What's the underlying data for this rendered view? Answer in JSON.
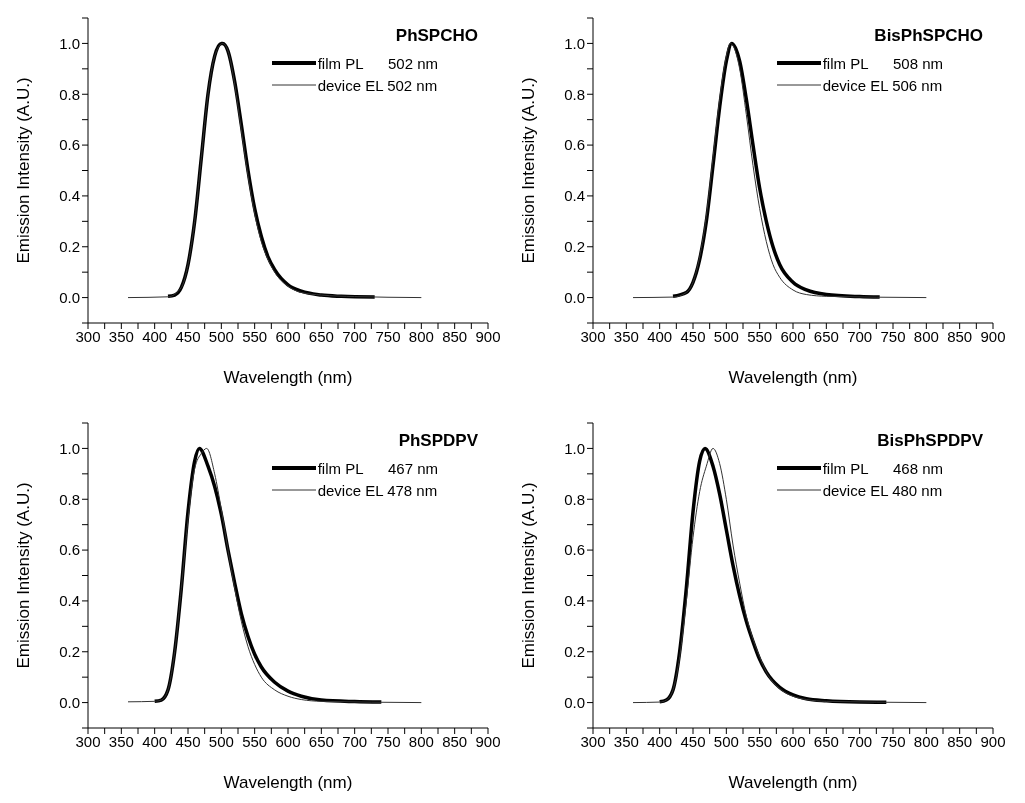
{
  "chart_data": [
    {
      "type": "line",
      "title": "PhSPCHO",
      "xlabel": "Wavelength (nm)",
      "ylabel": "Emission Intensity (A.U.)",
      "xlim": [
        300,
        900
      ],
      "ylim": [
        -0.1,
        1.1
      ],
      "xticks": [
        300,
        {
          "value": 325,
          "label": null
        },
        350,
        {
          "value": 375,
          "label": null
        },
        400,
        {
          "value": 425,
          "label": null
        },
        450,
        {
          "value": 475,
          "label": null
        },
        500,
        {
          "value": 525,
          "label": null
        },
        550,
        {
          "value": 575,
          "label": null
        },
        600,
        {
          "value": 625,
          "label": null
        },
        650,
        {
          "value": 675,
          "label": null
        },
        700,
        {
          "value": 725,
          "label": null
        },
        750,
        {
          "value": 775,
          "label": null
        },
        800,
        {
          "value": 825,
          "label": null
        },
        850,
        {
          "value": 875,
          "label": null
        },
        900
      ],
      "yticks": [
        {
          "value": -0.1,
          "label": null
        },
        {
          "value": 0,
          "label": "0.0"
        },
        {
          "value": 0.1,
          "label": null
        },
        0.2,
        {
          "value": 0.3,
          "label": null
        },
        0.4,
        {
          "value": 0.5,
          "label": null
        },
        0.6,
        {
          "value": 0.7,
          "label": null
        },
        0.8,
        {
          "value": 0.9,
          "label": null
        },
        {
          "value": 1,
          "label": "1.0"
        },
        {
          "value": 1.1,
          "label": null
        }
      ],
      "legend": "top right",
      "marker": "none",
      "line_style": "solid",
      "grid": false,
      "series": [
        {
          "name": "film PL      502 nm",
          "color": "#000000",
          "x": [
            420,
            430,
            440,
            450,
            460,
            470,
            480,
            490,
            500,
            502,
            510,
            520,
            530,
            540,
            550,
            560,
            570,
            580,
            600,
            620,
            650,
            680,
            730
          ],
          "values": [
            0.005,
            0.01,
            0.04,
            0.13,
            0.3,
            0.55,
            0.8,
            0.95,
            1.0,
            1.0,
            0.97,
            0.85,
            0.68,
            0.5,
            0.35,
            0.24,
            0.16,
            0.11,
            0.05,
            0.025,
            0.01,
            0.005,
            0.002
          ]
        },
        {
          "name": "device EL 502 nm",
          "color": "#333333",
          "x": [
            360,
            420,
            440,
            450,
            460,
            470,
            480,
            490,
            502,
            510,
            520,
            530,
            540,
            550,
            560,
            570,
            580,
            600,
            620,
            650,
            700,
            800
          ],
          "values": [
            0,
            0.003,
            0.04,
            0.13,
            0.3,
            0.55,
            0.8,
            0.95,
            1.0,
            0.97,
            0.84,
            0.66,
            0.48,
            0.33,
            0.22,
            0.15,
            0.1,
            0.045,
            0.02,
            0.01,
            0.004,
            0
          ]
        }
      ]
    },
    {
      "type": "line",
      "title": "BisPhSPCHO",
      "xlabel": "Wavelength (nm)",
      "ylabel": "Emission Intensity (A.U.)",
      "xlim": [
        300,
        900
      ],
      "ylim": [
        -0.1,
        1.1
      ],
      "xticks": [
        300,
        {
          "value": 325,
          "label": null
        },
        350,
        {
          "value": 375,
          "label": null
        },
        400,
        {
          "value": 425,
          "label": null
        },
        450,
        {
          "value": 475,
          "label": null
        },
        500,
        {
          "value": 525,
          "label": null
        },
        550,
        {
          "value": 575,
          "label": null
        },
        600,
        {
          "value": 625,
          "label": null
        },
        650,
        {
          "value": 675,
          "label": null
        },
        700,
        {
          "value": 725,
          "label": null
        },
        750,
        {
          "value": 775,
          "label": null
        },
        800,
        {
          "value": 825,
          "label": null
        },
        850,
        {
          "value": 875,
          "label": null
        },
        900
      ],
      "yticks": [
        {
          "value": -0.1,
          "label": null
        },
        {
          "value": 0,
          "label": "0.0"
        },
        {
          "value": 0.1,
          "label": null
        },
        0.2,
        {
          "value": 0.3,
          "label": null
        },
        0.4,
        {
          "value": 0.5,
          "label": null
        },
        0.6,
        {
          "value": 0.7,
          "label": null
        },
        0.8,
        {
          "value": 0.9,
          "label": null
        },
        {
          "value": 1,
          "label": "1.0"
        },
        {
          "value": 1.1,
          "label": null
        }
      ],
      "legend": "top right",
      "marker": "none",
      "line_style": "solid",
      "grid": false,
      "series": [
        {
          "name": "film PL      508 nm",
          "color": "#000000",
          "x": [
            420,
            440,
            450,
            460,
            470,
            480,
            490,
            500,
            508,
            520,
            530,
            540,
            550,
            560,
            570,
            580,
            600,
            620,
            650,
            700,
            730
          ],
          "values": [
            0.005,
            0.02,
            0.06,
            0.15,
            0.3,
            0.52,
            0.75,
            0.93,
            1.0,
            0.93,
            0.78,
            0.6,
            0.43,
            0.3,
            0.2,
            0.13,
            0.06,
            0.03,
            0.012,
            0.004,
            0.002
          ]
        },
        {
          "name": "device EL 506 nm",
          "color": "#333333",
          "x": [
            360,
            420,
            440,
            450,
            460,
            470,
            480,
            490,
            500,
            506,
            520,
            530,
            540,
            550,
            560,
            570,
            580,
            600,
            620,
            650,
            800
          ],
          "values": [
            0,
            0.002,
            0.02,
            0.06,
            0.16,
            0.32,
            0.55,
            0.78,
            0.95,
            1.0,
            0.9,
            0.72,
            0.52,
            0.35,
            0.22,
            0.13,
            0.08,
            0.03,
            0.012,
            0.005,
            0
          ]
        }
      ]
    },
    {
      "type": "line",
      "title": "PhSPDPV",
      "xlabel": "Wavelength (nm)",
      "ylabel": "Emission Intensity (A.U.)",
      "xlim": [
        300,
        900
      ],
      "ylim": [
        -0.1,
        1.1
      ],
      "xticks": [
        300,
        {
          "value": 325,
          "label": null
        },
        350,
        {
          "value": 375,
          "label": null
        },
        400,
        {
          "value": 425,
          "label": null
        },
        450,
        {
          "value": 475,
          "label": null
        },
        500,
        {
          "value": 525,
          "label": null
        },
        550,
        {
          "value": 575,
          "label": null
        },
        600,
        {
          "value": 625,
          "label": null
        },
        650,
        {
          "value": 675,
          "label": null
        },
        700,
        {
          "value": 725,
          "label": null
        },
        750,
        {
          "value": 775,
          "label": null
        },
        800,
        {
          "value": 825,
          "label": null
        },
        850,
        {
          "value": 875,
          "label": null
        },
        900
      ],
      "yticks": [
        {
          "value": -0.1,
          "label": null
        },
        {
          "value": 0,
          "label": "0.0"
        },
        {
          "value": 0.1,
          "label": null
        },
        0.2,
        {
          "value": 0.3,
          "label": null
        },
        0.4,
        {
          "value": 0.5,
          "label": null
        },
        0.6,
        {
          "value": 0.7,
          "label": null
        },
        0.8,
        {
          "value": 0.9,
          "label": null
        },
        {
          "value": 1,
          "label": "1.0"
        },
        {
          "value": 1.1,
          "label": null
        }
      ],
      "legend": "top right",
      "marker": "none",
      "line_style": "solid",
      "grid": false,
      "series": [
        {
          "name": "film PL      467 nm",
          "color": "#000000",
          "x": [
            400,
            410,
            420,
            430,
            440,
            450,
            460,
            467,
            480,
            490,
            500,
            510,
            520,
            530,
            540,
            550,
            560,
            580,
            600,
            620,
            650,
            700,
            740
          ],
          "values": [
            0.005,
            0.01,
            0.05,
            0.2,
            0.45,
            0.75,
            0.95,
            1.0,
            0.93,
            0.85,
            0.74,
            0.6,
            0.47,
            0.35,
            0.26,
            0.19,
            0.14,
            0.08,
            0.045,
            0.025,
            0.01,
            0.004,
            0.002
          ]
        },
        {
          "name": "device EL 478 nm",
          "color": "#333333",
          "x": [
            360,
            400,
            410,
            420,
            430,
            440,
            450,
            460,
            470,
            478,
            490,
            500,
            510,
            520,
            530,
            540,
            550,
            560,
            580,
            600,
            620,
            650,
            800
          ],
          "values": [
            0.003,
            0.005,
            0.01,
            0.05,
            0.2,
            0.45,
            0.72,
            0.92,
            0.98,
            1.0,
            0.9,
            0.76,
            0.6,
            0.45,
            0.32,
            0.22,
            0.15,
            0.1,
            0.05,
            0.025,
            0.012,
            0.005,
            0
          ]
        }
      ]
    },
    {
      "type": "line",
      "title": "BisPhSPDPV",
      "xlabel": "Wavelength (nm)",
      "ylabel": "Emission Intensity (A.U.)",
      "xlim": [
        300,
        900
      ],
      "ylim": [
        -0.1,
        1.1
      ],
      "xticks": [
        300,
        {
          "value": 325,
          "label": null
        },
        350,
        {
          "value": 375,
          "label": null
        },
        400,
        {
          "value": 425,
          "label": null
        },
        450,
        {
          "value": 475,
          "label": null
        },
        500,
        {
          "value": 525,
          "label": null
        },
        550,
        {
          "value": 575,
          "label": null
        },
        600,
        {
          "value": 625,
          "label": null
        },
        650,
        {
          "value": 675,
          "label": null
        },
        700,
        {
          "value": 725,
          "label": null
        },
        750,
        {
          "value": 775,
          "label": null
        },
        800,
        {
          "value": 825,
          "label": null
        },
        850,
        {
          "value": 875,
          "label": null
        },
        900
      ],
      "yticks": [
        {
          "value": -0.1,
          "label": null
        },
        {
          "value": 0,
          "label": "0.0"
        },
        {
          "value": 0.1,
          "label": null
        },
        0.2,
        {
          "value": 0.3,
          "label": null
        },
        0.4,
        {
          "value": 0.5,
          "label": null
        },
        0.6,
        {
          "value": 0.7,
          "label": null
        },
        0.8,
        {
          "value": 0.9,
          "label": null
        },
        {
          "value": 1,
          "label": "1.0"
        },
        {
          "value": 1.1,
          "label": null
        }
      ],
      "legend": "top right",
      "marker": "none",
      "line_style": "solid",
      "grid": false,
      "series": [
        {
          "name": "film PL      468 nm",
          "color": "#000000",
          "x": [
            400,
            410,
            420,
            430,
            440,
            450,
            460,
            468,
            480,
            490,
            500,
            510,
            520,
            530,
            540,
            550,
            560,
            580,
            600,
            620,
            650,
            700,
            740
          ],
          "values": [
            0.003,
            0.01,
            0.05,
            0.2,
            0.45,
            0.75,
            0.95,
            1.0,
            0.93,
            0.82,
            0.68,
            0.54,
            0.42,
            0.32,
            0.24,
            0.17,
            0.12,
            0.06,
            0.03,
            0.015,
            0.007,
            0.002,
            0.001
          ]
        },
        {
          "name": "device EL 480 nm",
          "color": "#333333",
          "x": [
            360,
            400,
            410,
            420,
            430,
            440,
            450,
            460,
            470,
            480,
            490,
            500,
            510,
            520,
            530,
            540,
            550,
            560,
            580,
            600,
            620,
            650,
            800
          ],
          "values": [
            0,
            0.002,
            0.01,
            0.05,
            0.18,
            0.4,
            0.65,
            0.83,
            0.93,
            1.0,
            0.94,
            0.8,
            0.62,
            0.47,
            0.34,
            0.25,
            0.18,
            0.12,
            0.055,
            0.025,
            0.012,
            0.005,
            0
          ]
        }
      ]
    }
  ]
}
